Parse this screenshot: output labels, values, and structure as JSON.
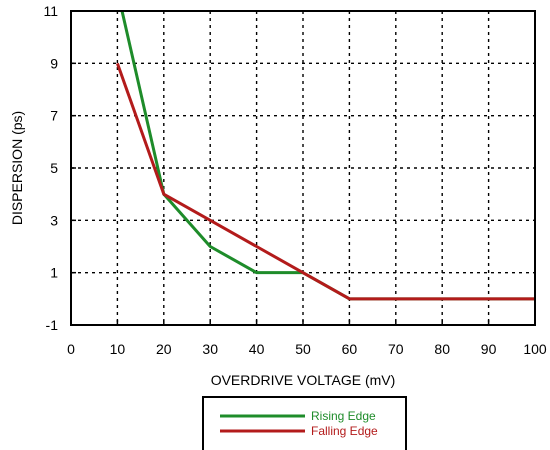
{
  "chart_data": {
    "type": "line",
    "title": "",
    "xlabel": "OVERDRIVE VOLTAGE (mV)",
    "ylabel": "DISPERSION (ps)",
    "xlim": [
      0,
      100
    ],
    "ylim": [
      -1,
      11
    ],
    "xticks": [
      0,
      10,
      20,
      30,
      40,
      50,
      60,
      70,
      80,
      90,
      100
    ],
    "yticks": [
      -1,
      1,
      3,
      5,
      7,
      9,
      11
    ],
    "grid": true,
    "legend_position": "bottom-center",
    "series": [
      {
        "name": "Rising Edge",
        "color": "#1e8c2a",
        "x": [
          11,
          20,
          30,
          40,
          50,
          60,
          100
        ],
        "y": [
          11,
          4,
          2,
          1,
          1,
          0,
          0
        ]
      },
      {
        "name": "Falling Edge",
        "color": "#b31b1b",
        "x": [
          10,
          20,
          30,
          40,
          50,
          60,
          100
        ],
        "y": [
          9,
          4,
          3,
          2,
          1,
          0,
          0
        ]
      }
    ]
  }
}
